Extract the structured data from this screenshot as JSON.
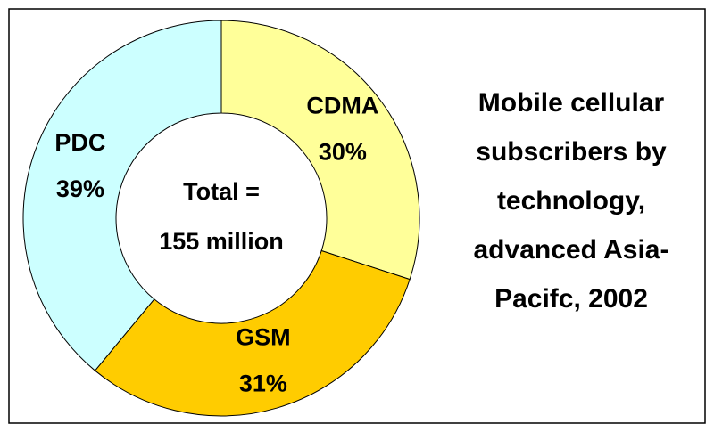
{
  "chart_data": {
    "type": "donut",
    "title": "Mobile cellular subscribers by technology, advanced Asia-Pacifc, 2002",
    "center_label": [
      "Total =",
      "155 million"
    ],
    "categories": [
      "CDMA",
      "GSM",
      "PDC"
    ],
    "values": [
      30,
      31,
      39
    ],
    "value_labels": [
      "30%",
      "31%",
      "39%"
    ],
    "colors": [
      "#ffff99",
      "#ffcc00",
      "#ccffff"
    ]
  }
}
